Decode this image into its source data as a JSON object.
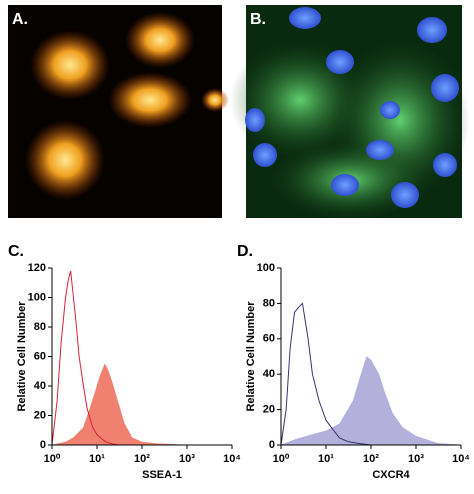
{
  "images": [
    {
      "label": "A."
    },
    {
      "label": "B."
    }
  ],
  "chart_data": [
    {
      "type": "area",
      "panel_label": "C.",
      "y_label": "Relative Cell Number",
      "x_label": "SSEA-1",
      "xscale": "log",
      "xlim": [
        1,
        10000
      ],
      "xticks": [
        {
          "value": 1,
          "label": "10⁰"
        },
        {
          "value": 10,
          "label": "10¹"
        },
        {
          "value": 100,
          "label": "10²"
        },
        {
          "value": 1000,
          "label": "10³"
        },
        {
          "value": 10000,
          "label": "10⁴"
        }
      ],
      "ylim": [
        0,
        120
      ],
      "yticks": [
        0,
        20,
        40,
        60,
        80,
        100,
        120
      ],
      "series": [
        {
          "color": "#f08070",
          "style": "filled",
          "x": [
            1,
            2,
            3,
            5,
            7,
            10,
            12,
            15,
            18,
            22,
            30,
            40,
            60,
            100,
            200,
            1000,
            10000
          ],
          "values": [
            0,
            2,
            5,
            12,
            25,
            40,
            48,
            55,
            50,
            42,
            28,
            15,
            5,
            2,
            1,
            0,
            0
          ]
        },
        {
          "color": "#d8203a",
          "style": "outline",
          "x": [
            1,
            1.3,
            1.6,
            2,
            2.3,
            2.6,
            3,
            3.5,
            4,
            5,
            6,
            8,
            10,
            13,
            16,
            20,
            30,
            50,
            100
          ],
          "values": [
            0,
            30,
            70,
            100,
            112,
            118,
            100,
            80,
            60,
            40,
            25,
            12,
            7,
            4,
            2,
            1,
            0,
            0,
            0
          ]
        }
      ]
    },
    {
      "type": "area",
      "panel_label": "D.",
      "y_label": "Relative Cell Number",
      "x_label": "CXCR4",
      "xscale": "log",
      "xlim": [
        1,
        10000
      ],
      "xticks": [
        {
          "value": 1,
          "label": "10⁰"
        },
        {
          "value": 10,
          "label": "10¹"
        },
        {
          "value": 100,
          "label": "10²"
        },
        {
          "value": 1000,
          "label": "10³"
        },
        {
          "value": 10000,
          "label": "10⁴"
        }
      ],
      "ylim": [
        0,
        100
      ],
      "yticks": [
        0,
        20,
        40,
        60,
        80,
        100
      ],
      "series": [
        {
          "color": "#b3b0dc",
          "style": "filled",
          "x": [
            1,
            2,
            5,
            10,
            20,
            40,
            60,
            80,
            100,
            150,
            200,
            300,
            500,
            1000,
            3000,
            10000
          ],
          "values": [
            0,
            3,
            6,
            8,
            12,
            25,
            40,
            50,
            48,
            40,
            30,
            18,
            10,
            5,
            1,
            0
          ]
        },
        {
          "color": "#3a3270",
          "style": "outline",
          "x": [
            1,
            1.3,
            1.6,
            2,
            2.5,
            3,
            4,
            5,
            7,
            10,
            15,
            20,
            30,
            50,
            100,
            1000
          ],
          "values": [
            0,
            20,
            55,
            75,
            78,
            80,
            60,
            40,
            25,
            14,
            8,
            4,
            2,
            1,
            0,
            0
          ]
        }
      ]
    }
  ]
}
